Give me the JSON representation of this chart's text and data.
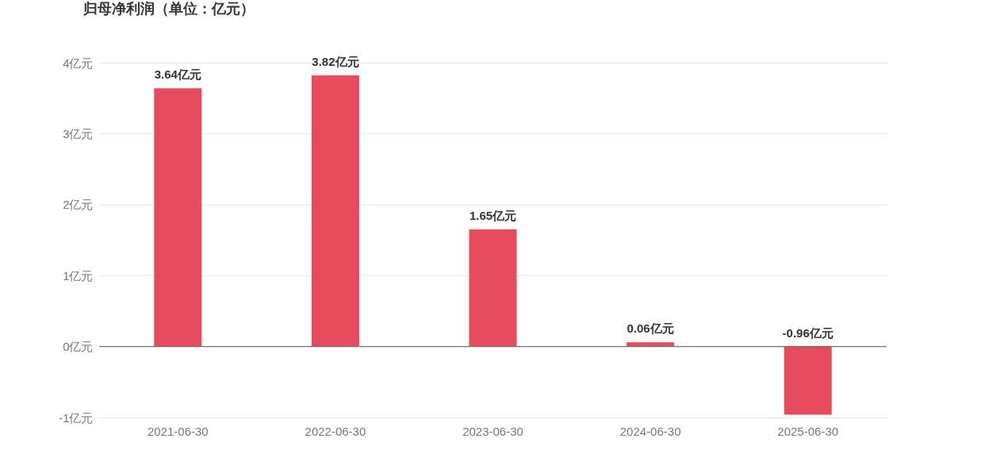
{
  "chart_data": {
    "type": "bar",
    "title": "归母净利润（单位：亿元）",
    "categories": [
      "2021-06-30",
      "2022-06-30",
      "2023-06-30",
      "2024-06-30",
      "2025-06-30"
    ],
    "values": [
      3.64,
      3.82,
      1.65,
      0.06,
      -0.96
    ],
    "value_labels": [
      "3.64亿元",
      "3.82亿元",
      "1.65亿元",
      "0.06亿元",
      "-0.96亿元"
    ],
    "color": "#e64c5e",
    "ylim": [
      -1,
      4
    ],
    "yticks": [
      {
        "value": -1,
        "label": "-1亿元"
      },
      {
        "value": 0,
        "label": "0亿元"
      },
      {
        "value": 1,
        "label": "1亿元"
      },
      {
        "value": 2,
        "label": "2亿元"
      },
      {
        "value": 3,
        "label": "3亿元"
      },
      {
        "value": 4,
        "label": "4亿元"
      }
    ],
    "ref_lines": [
      {
        "axis": "y",
        "value": 0,
        "label": null,
        "color": "#666666"
      }
    ],
    "grid": "y"
  }
}
